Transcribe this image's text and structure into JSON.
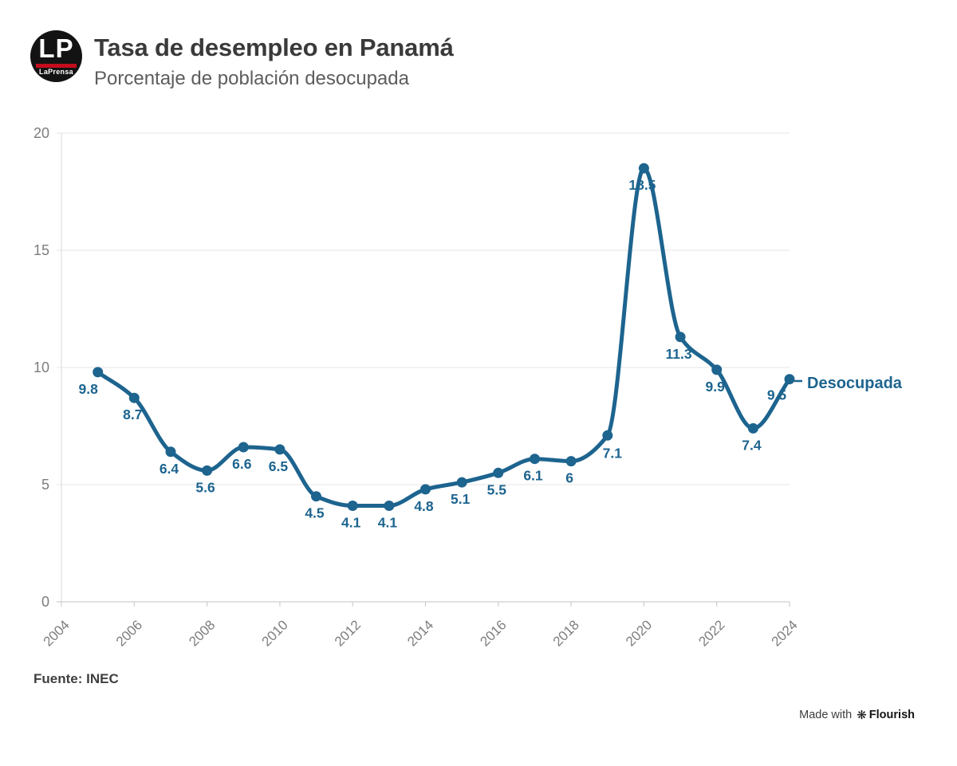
{
  "header": {
    "title": "Tasa de desempleo en Panamá",
    "subtitle": "Porcentaje de población desocupada",
    "logo": {
      "initials": "LP",
      "name": "LaPrensa"
    }
  },
  "footer": {
    "source": "Fuente: INEC",
    "credit_prefix": "Made with",
    "credit_brand": "Flourish"
  },
  "chart_data": {
    "type": "line",
    "title": "Tasa de desempleo en Panamá",
    "subtitle": "Porcentaje de población desocupada",
    "series_label": "Desocupada",
    "x": [
      2005,
      2006,
      2007,
      2008,
      2009,
      2010,
      2011,
      2012,
      2013,
      2014,
      2015,
      2016,
      2017,
      2018,
      2019,
      2020,
      2021,
      2022,
      2023,
      2024
    ],
    "values": [
      9.8,
      8.7,
      6.4,
      5.6,
      6.6,
      6.5,
      4.5,
      4.1,
      4.1,
      4.8,
      5.1,
      5.5,
      6.1,
      6.0,
      7.1,
      18.5,
      11.3,
      9.9,
      7.4,
      9.5
    ],
    "point_labels": [
      "9.8",
      "8.7",
      "6.4",
      "5.6",
      "6.6",
      "6.5",
      "4.5",
      "4.1",
      "4.1",
      "4.8",
      "5.1",
      "5.5",
      "6.1",
      "6",
      "7.1",
      "18.5",
      "11.3",
      "9.9",
      "7.4",
      "9.5"
    ],
    "xlim": [
      2004,
      2024
    ],
    "ylim": [
      0,
      20
    ],
    "x_ticks": [
      2004,
      2006,
      2008,
      2010,
      2012,
      2014,
      2016,
      2018,
      2020,
      2022,
      2024
    ],
    "x_tick_labels": [
      "2004",
      "2006",
      "2008",
      "2010",
      "2012",
      "2014",
      "2016",
      "2018",
      "2020",
      "2022",
      "2024"
    ],
    "y_ticks": [
      0,
      5,
      10,
      15,
      20
    ],
    "y_tick_labels": [
      "0",
      "5",
      "10",
      "15",
      "20"
    ],
    "grid": "horizontal",
    "legend_position": "end-of-line",
    "xlabel": "",
    "ylabel": "",
    "line_color": "#1d648f",
    "label_color": "#1d648f",
    "grid_color": "#e4e4e4",
    "axis_color": "#cfcfcf",
    "tick_label_color": "#7d7d7d",
    "source": "INEC"
  }
}
